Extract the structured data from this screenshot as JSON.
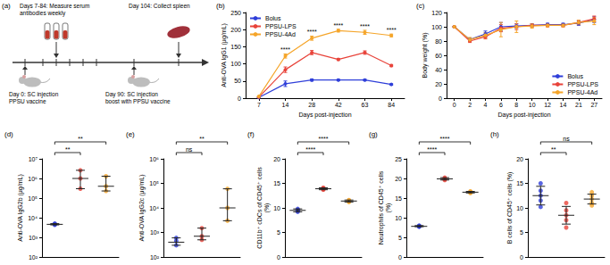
{
  "schematic": {
    "label": "(a)",
    "measure": "Days 7-84: Measure serum antibodies weekly",
    "collect": "Day 104: Collect spleen",
    "injection": [
      "Day 0: SC injection",
      "PPSU vaccine"
    ],
    "boost": [
      "Day 90: SC injection",
      "boost with PPSU vaccine"
    ]
  },
  "chart_data": [
    {
      "label": "(b)",
      "type": "line",
      "x_label": "Days post-injection",
      "y_label": "Anti-OVA IgG1 (μg/mL)",
      "categories": [
        7,
        14,
        28,
        42,
        63,
        84
      ],
      "ylim": [
        0,
        250
      ],
      "yticks": [
        0,
        50,
        100,
        150,
        200,
        250
      ],
      "grid": false,
      "legend": "upper left",
      "marker": "circle",
      "series": [
        {
          "name": "Bolus",
          "color": "#2f3fd9",
          "values": [
            2,
            42,
            53,
            53,
            53,
            40
          ],
          "errors": [
            1,
            8,
            3,
            2,
            2,
            2
          ]
        },
        {
          "name": "PPSU-LPS",
          "color": "#e8433a",
          "values": [
            3,
            83,
            133,
            113,
            133,
            95
          ],
          "errors": [
            1,
            8,
            6,
            3,
            5,
            3
          ]
        },
        {
          "name": "PPSU-4Ad",
          "color": "#f5a52a",
          "values": [
            5,
            123,
            175,
            197,
            192,
            183
          ],
          "errors": [
            1,
            6,
            6,
            4,
            6,
            4
          ]
        }
      ],
      "annotations": [
        {
          "x": 14,
          "text": "****"
        },
        {
          "x": 28,
          "text": "****"
        },
        {
          "x": 42,
          "text": "****"
        },
        {
          "x": 63,
          "text": "****"
        },
        {
          "x": 84,
          "text": "****"
        }
      ]
    },
    {
      "label": "(c)",
      "type": "line",
      "x_label": "Days post-injection",
      "y_label": "Body weight (%)",
      "categories": [
        0,
        2,
        4,
        6,
        8,
        10,
        12,
        14,
        21,
        27
      ],
      "ylim": [
        0,
        120
      ],
      "yticks": [
        0,
        20,
        40,
        60,
        80,
        100,
        120
      ],
      "grid": false,
      "legend": "lower right",
      "marker": "circle",
      "series": [
        {
          "name": "Bolus",
          "color": "#2f3fd9",
          "values": [
            100,
            82,
            90,
            100,
            101,
            102,
            103,
            103,
            105,
            110
          ],
          "errors": [
            0,
            2,
            4,
            6,
            3,
            2,
            2,
            2,
            3,
            4
          ]
        },
        {
          "name": "PPSU-LPS",
          "color": "#e8433a",
          "values": [
            100,
            80,
            86,
            98,
            100,
            102,
            102,
            102,
            106,
            111
          ],
          "errors": [
            0,
            2,
            3,
            5,
            4,
            2,
            2,
            2,
            3,
            4
          ]
        },
        {
          "name": "PPSU-4Ad",
          "color": "#f5a52a",
          "values": [
            100,
            82,
            88,
            96,
            100,
            101,
            102,
            102,
            106,
            108
          ],
          "errors": [
            0,
            3,
            4,
            10,
            8,
            3,
            2,
            2,
            3,
            5
          ]
        }
      ]
    },
    {
      "label": "(d)",
      "type": "scatter",
      "y_label": "Anti-OVA IgG2b (μg/mL)",
      "categories": [
        null,
        null,
        null
      ],
      "colors": [
        "#2f3fd9",
        "#e8433a",
        "#f5a52a"
      ],
      "log": "y",
      "ylim": [
        100,
        10000000
      ],
      "yticks": [
        {
          "value": 100,
          "label": "10²"
        },
        {
          "value": 1000,
          "label": "10³"
        },
        {
          "value": 10000,
          "label": "10⁴"
        },
        {
          "value": 100000,
          "label": "10⁵"
        },
        {
          "value": 1000000,
          "label": "10⁶"
        },
        {
          "value": 10000000,
          "label": "10⁷"
        }
      ],
      "tick_labels": "y",
      "grid": false,
      "marker": "circle",
      "points": [
        [
          4300,
          4600,
          4800,
          5000
        ],
        [
          300000,
          1000000,
          2600000
        ],
        [
          230000,
          400000,
          1300000
        ]
      ],
      "means": [
        4600,
        1000000,
        400000
      ],
      "lower": [
        4300,
        300000,
        230000
      ],
      "upper": [
        5000,
        2600000,
        1300000
      ],
      "comparisons": [
        {
          "from": 0,
          "to": 1,
          "text": "**"
        },
        {
          "from": 0,
          "to": 2,
          "text": "**"
        }
      ]
    },
    {
      "label": "(e)",
      "type": "scatter",
      "y_label": "Anti-OVA IgG2c (μg/mL)",
      "categories": [
        null,
        null,
        null
      ],
      "colors": [
        "#2f3fd9",
        "#e8433a",
        "#f5a52a"
      ],
      "log": "y",
      "ylim": [
        100,
        1000000
      ],
      "yticks": [
        {
          "value": 100,
          "label": "10²"
        },
        {
          "value": 1000,
          "label": "10³"
        },
        {
          "value": 10000,
          "label": "10⁴"
        },
        {
          "value": 100000,
          "label": "10⁵"
        },
        {
          "value": 1000000,
          "label": "10⁶"
        }
      ],
      "tick_labels": "y",
      "grid": false,
      "marker": "circle",
      "points": [
        [
          300,
          450,
          600
        ],
        [
          500,
          700,
          1500
        ],
        [
          3000,
          10000,
          60000
        ]
      ],
      "means": [
        400,
        700,
        10000
      ],
      "lower": [
        300,
        500,
        3000
      ],
      "upper": [
        600,
        1500,
        60000
      ],
      "comparisons": [
        {
          "from": 0,
          "to": 1,
          "text": "ns"
        },
        {
          "from": 0,
          "to": 2,
          "text": "**"
        }
      ]
    },
    {
      "label": "(f)",
      "type": "scatter",
      "y_label": "CD11b⁺ cDCs of CD45⁺ cells (%)",
      "categories": [
        null,
        null,
        null
      ],
      "colors": [
        "#2f3fd9",
        "#e8433a",
        "#f5a52a"
      ],
      "ylim": [
        0,
        20
      ],
      "yticks": [
        0,
        5,
        10,
        15,
        20
      ],
      "tick_labels": "y",
      "grid": false,
      "marker": "circle",
      "points": [
        [
          9.2,
          9.4,
          9.5,
          9.6,
          9.8
        ],
        [
          13.7,
          13.8,
          13.9,
          14.0,
          14.1
        ],
        [
          11.2,
          11.3,
          11.4,
          11.5,
          11.6
        ]
      ],
      "means": [
        9.5,
        13.9,
        11.4
      ],
      "lower": [
        9.2,
        13.7,
        11.2
      ],
      "upper": [
        9.8,
        14.1,
        11.6
      ],
      "comparisons": [
        {
          "from": 0,
          "to": 1,
          "text": "****"
        },
        {
          "from": 0,
          "to": 2,
          "text": "****"
        }
      ]
    },
    {
      "label": "(g)",
      "type": "scatter",
      "y_label": "Neutrophils of CD45⁺ cells (%)",
      "categories": [
        null,
        null,
        null
      ],
      "colors": [
        "#2f3fd9",
        "#e8433a",
        "#f5a52a"
      ],
      "ylim": [
        0,
        25
      ],
      "yticks": [
        0,
        5,
        10,
        15,
        20,
        25
      ],
      "tick_labels": "y",
      "grid": false,
      "marker": "circle",
      "points": [
        [
          7.7,
          7.8,
          7.8,
          7.9,
          8.0
        ],
        [
          19.6,
          19.8,
          19.9,
          20.0,
          20.2
        ],
        [
          16.3,
          16.4,
          16.5,
          16.6,
          16.7
        ]
      ],
      "means": [
        7.8,
        19.9,
        16.5
      ],
      "lower": [
        7.7,
        19.6,
        16.3
      ],
      "upper": [
        8.0,
        20.2,
        16.7
      ],
      "comparisons": [
        {
          "from": 0,
          "to": 1,
          "text": "****"
        },
        {
          "from": 0,
          "to": 2,
          "text": "****"
        }
      ]
    },
    {
      "label": "(h)",
      "type": "scatter",
      "y_label": "B cells of CD45⁺ cells (%)",
      "categories": [
        null,
        null,
        null
      ],
      "colors": [
        "#2f3fd9",
        "#e8433a",
        "#f5a52a"
      ],
      "ylim": [
        0,
        20
      ],
      "yticks": [
        0,
        5,
        10,
        15,
        20
      ],
      "tick_labels": "y",
      "grid": false,
      "marker": "circle",
      "points": [
        [
          10.2,
          11.5,
          12.5,
          13.5,
          15.0
        ],
        [
          6.0,
          7.5,
          8.5,
          9.5,
          11.0
        ],
        [
          10.5,
          11.0,
          11.8,
          12.5,
          13.2
        ]
      ],
      "means": [
        12.5,
        8.5,
        11.8
      ],
      "lower": [
        10.6,
        6.7,
        10.8
      ],
      "upper": [
        14.4,
        10.3,
        12.8
      ],
      "comparisons": [
        {
          "from": 0,
          "to": 1,
          "text": "**"
        },
        {
          "from": 0,
          "to": 2,
          "text": "ns"
        }
      ]
    }
  ]
}
